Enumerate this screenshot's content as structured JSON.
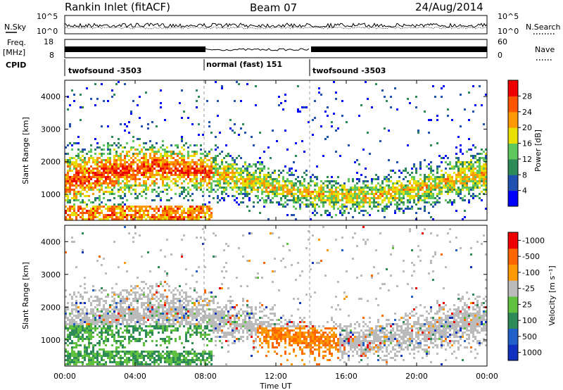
{
  "header": {
    "station": "Rankin Inlet (fitACF)",
    "beam": "Beam 07",
    "date": "24/Aug/2014"
  },
  "chart_data": [
    {
      "type": "line",
      "panel": "noise",
      "left_label": "N.Sky",
      "right_label": "N.Search",
      "left_ticks": [
        "10^5",
        "10^0"
      ],
      "right_ticks": [
        "10^5",
        "10^0"
      ]
    },
    {
      "type": "line",
      "panel": "frequency",
      "left_label_top": "Freq.",
      "left_label_bottom": "[MHz]",
      "right_label": "Nave",
      "left_ticks": [
        "18",
        "8"
      ],
      "right_ticks": [
        "60",
        "0"
      ]
    },
    {
      "type": "table",
      "panel": "cpid",
      "label": "CPID",
      "segments": [
        {
          "name": "twofsound -3503",
          "start_h": 0,
          "end_h": 8
        },
        {
          "name": "normal (fast) 151",
          "start_h": 8,
          "end_h": 14
        },
        {
          "name": "twofsound -3503",
          "start_h": 14,
          "end_h": 24
        }
      ]
    },
    {
      "type": "heatmap",
      "panel": "power",
      "ylabel": "Slant Range [km]",
      "ylim": [
        200,
        4500
      ],
      "yticks": [
        1000,
        2000,
        3000,
        4000
      ],
      "colorbar": {
        "label": "Power [dB]",
        "ticks": [
          "4",
          "8",
          "12",
          "16",
          "20",
          "24",
          "28"
        ],
        "colors": [
          "#0000ff",
          "#2050b0",
          "#2e8b57",
          "#5ec85e",
          "#e8e000",
          "#ff9900",
          "#ff5500",
          "#ee0000"
        ]
      }
    },
    {
      "type": "heatmap",
      "panel": "velocity",
      "ylabel": "Slant Range [km]",
      "ylim": [
        200,
        4500
      ],
      "yticks": [
        1000,
        2000,
        3000,
        4000
      ],
      "xlabel": "Time UT",
      "xlim": [
        "00:00",
        "24:00"
      ],
      "xticks": [
        "00:00",
        "04:00",
        "08:00",
        "12:00",
        "16:00",
        "20:00",
        "00:00"
      ],
      "colorbar": {
        "label": "Velocity [m s⁻¹]",
        "ticks": [
          "1000",
          "500",
          "100",
          "25",
          "-25",
          "-100",
          "-500",
          "-1000"
        ],
        "colors": [
          "#1030c0",
          "#2060c8",
          "#2e8b57",
          "#60c040",
          "#bbbbbb",
          "#ff9900",
          "#ff6600",
          "#ee0000"
        ]
      }
    }
  ]
}
